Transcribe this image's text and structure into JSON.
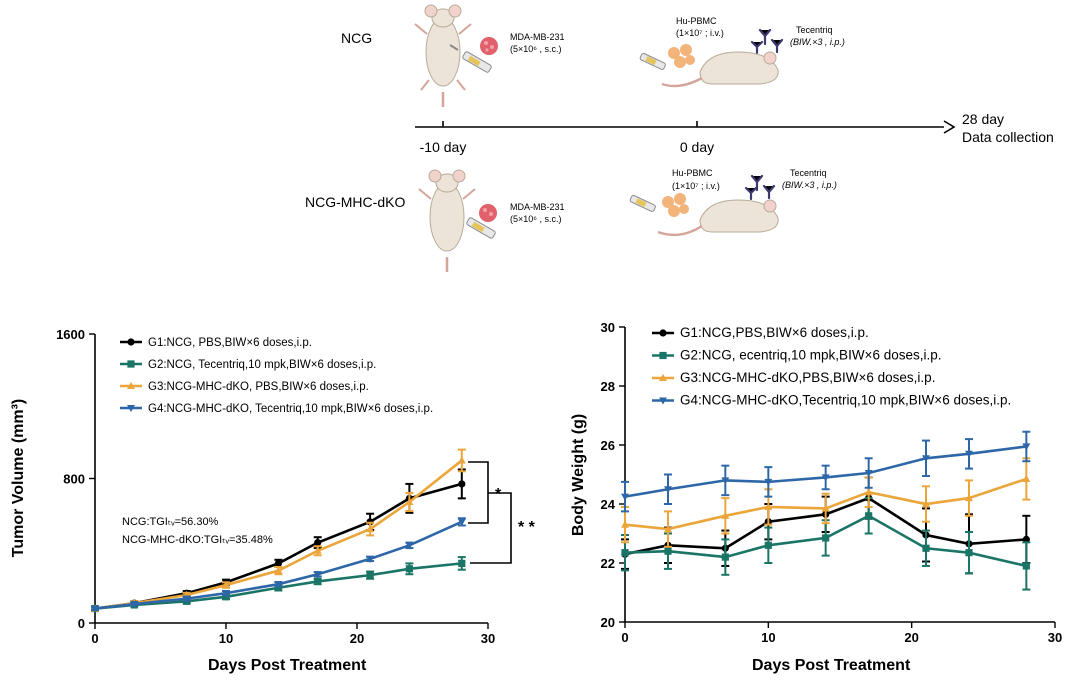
{
  "schematic": {
    "row1_label": "NCG",
    "row2_label": "NCG-MHC-dKO",
    "tumor_line1": "MDA-MB-231",
    "tumor_line2": "(5×10⁶ , s.c.)",
    "pbmc_line1": "Hu-PBMC",
    "pbmc_line2": "(1×10⁷ ; i.v.)",
    "drug_line1": "Tecentriq",
    "drug_line2": "(BIW.×3 , i.p.)",
    "timeline_start": "-10 day",
    "timeline_mid": "0 day",
    "timeline_end_line1": "28 day",
    "timeline_end_line2": "Data collection"
  },
  "colors": {
    "G1": "#000000",
    "G2": "#1a7566",
    "G3": "#eba53a",
    "G4": "#2e67a8",
    "tumor_cell": "#e0606c",
    "pbmc_cell": "#f3b47b",
    "antibody": "#3c3a70"
  },
  "chart_data": [
    {
      "type": "line",
      "xlabel": "Days Post Treatment",
      "ylabel": "Tumor Volume (mm³)",
      "xlim": [
        0,
        30
      ],
      "ylim": [
        0,
        1600
      ],
      "xticks": [
        0,
        10,
        20,
        30
      ],
      "yticks": [
        0,
        800,
        1600
      ],
      "grid": false,
      "legend_position": "top-left",
      "series": [
        {
          "key": "G1",
          "name": "G1:NCG, PBS,BIW×6 doses,i.p.",
          "marker": "circle",
          "x": [
            0,
            3,
            7,
            10,
            14,
            17,
            21,
            24,
            28
          ],
          "y": [
            80,
            110,
            165,
            225,
            330,
            445,
            560,
            690,
            770
          ],
          "err": [
            10,
            10,
            12,
            15,
            20,
            30,
            45,
            80,
            80
          ]
        },
        {
          "key": "G2",
          "name": "G2:NCG, Tecentriq,10 mpk,BIW×6 doses,i.p.",
          "marker": "square",
          "x": [
            0,
            3,
            7,
            10,
            14,
            17,
            21,
            24,
            28
          ],
          "y": [
            80,
            100,
            120,
            145,
            195,
            230,
            265,
            300,
            330
          ],
          "err": [
            8,
            8,
            10,
            12,
            15,
            15,
            20,
            30,
            35
          ]
        },
        {
          "key": "G3",
          "name": "G3:NCG-MHC-dKO, PBS,BIW×6 doses,i.p.",
          "marker": "triangle-up",
          "x": [
            0,
            3,
            7,
            10,
            14,
            17,
            21,
            24,
            28
          ],
          "y": [
            80,
            110,
            155,
            210,
            290,
            400,
            520,
            670,
            900
          ],
          "err": [
            8,
            10,
            12,
            15,
            20,
            25,
            35,
            50,
            60
          ]
        },
        {
          "key": "G4",
          "name": "G4:NCG-MHC-dKO, Tecentriq,10 mpk,BIW×6 doses,i.p.",
          "marker": "triangle-down",
          "x": [
            0,
            3,
            7,
            10,
            14,
            17,
            21,
            24,
            28
          ],
          "y": [
            80,
            105,
            135,
            165,
            215,
            270,
            355,
            430,
            560
          ],
          "err": [
            8,
            8,
            10,
            12,
            12,
            12,
            12,
            15,
            20
          ]
        }
      ],
      "annotations": {
        "tgi_ncg": "NCG:TGIₜᵥ=56.30%",
        "tgi_dko": "NCG-MHC-dKO:TGIₜᵥ=35.48%",
        "sig_single": "*",
        "sig_double": "* *"
      }
    },
    {
      "type": "line",
      "xlabel": "Days Post Treatment",
      "ylabel": "Body Weight (g)",
      "xlim": [
        0,
        30
      ],
      "ylim": [
        20,
        30
      ],
      "xticks": [
        0,
        10,
        20,
        30
      ],
      "yticks": [
        20,
        22,
        24,
        26,
        28,
        30
      ],
      "grid": false,
      "legend_position": "top-left",
      "series": [
        {
          "key": "G1",
          "name": "G1:NCG,PBS,BIW×6 doses,i.p.",
          "marker": "circle",
          "x": [
            0,
            3,
            7,
            10,
            14,
            17,
            21,
            24,
            28
          ],
          "y": [
            22.3,
            22.6,
            22.5,
            23.4,
            23.65,
            24.2,
            22.95,
            22.65,
            22.8
          ],
          "err": [
            0.5,
            0.6,
            0.6,
            0.6,
            0.6,
            0.7,
            0.9,
            1.0,
            0.8
          ]
        },
        {
          "key": "G2",
          "name": "G2:NCG, ecentriq,10 mpk,BIW×6 doses,i.p.",
          "marker": "square",
          "x": [
            0,
            3,
            7,
            10,
            14,
            17,
            21,
            24,
            28
          ],
          "y": [
            22.35,
            22.4,
            22.2,
            22.6,
            22.85,
            23.6,
            22.5,
            22.35,
            21.9
          ],
          "err": [
            0.6,
            0.6,
            0.6,
            0.6,
            0.6,
            0.6,
            0.6,
            0.7,
            0.8
          ]
        },
        {
          "key": "G3",
          "name": "G3:NCG-MHC-dKO,PBS,BIW×6 doses,i.p.",
          "marker": "triangle-up",
          "x": [
            0,
            3,
            7,
            10,
            14,
            17,
            21,
            24,
            28
          ],
          "y": [
            23.3,
            23.15,
            23.6,
            23.9,
            23.85,
            24.4,
            24.0,
            24.2,
            24.85
          ],
          "err": [
            0.6,
            0.6,
            0.6,
            0.6,
            0.5,
            0.5,
            0.6,
            0.6,
            0.7
          ]
        },
        {
          "key": "G4",
          "name": "G4:NCG-MHC-dKO,Tecentriq,10 mpk,BIW×6 doses,i.p.",
          "marker": "triangle-down",
          "x": [
            0,
            3,
            7,
            10,
            14,
            17,
            21,
            24,
            28
          ],
          "y": [
            24.25,
            24.5,
            24.8,
            24.75,
            24.9,
            25.05,
            25.55,
            25.7,
            25.95
          ],
          "err": [
            0.5,
            0.5,
            0.5,
            0.5,
            0.4,
            0.5,
            0.6,
            0.5,
            0.5
          ]
        }
      ]
    }
  ]
}
